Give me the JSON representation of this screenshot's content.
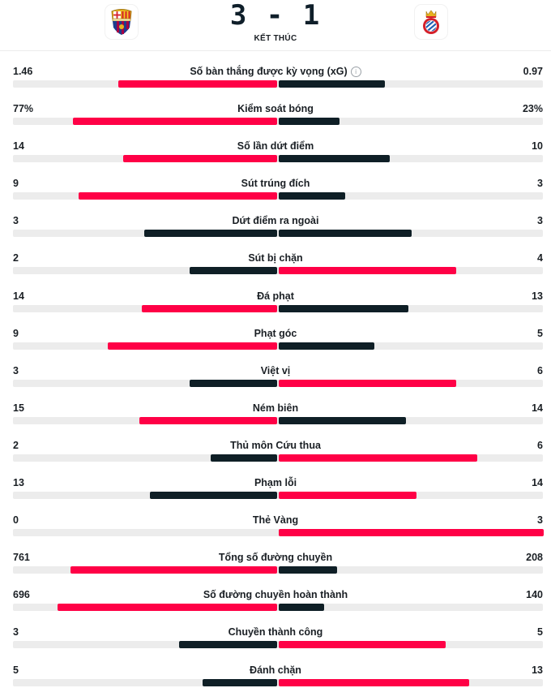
{
  "header": {
    "home_team_logo": "fc-barcelona-crest",
    "away_team_logo": "rcd-espanyol-crest",
    "score": "3 - 1",
    "status": "KẾT THÚC"
  },
  "colors": {
    "leader": "#ff0046",
    "trailer": "#0f1f26",
    "track": "#ececec"
  },
  "stats": [
    {
      "label": "Số bàn thắng được kỳ vọng (xG)",
      "home": "1.46",
      "away": "0.97",
      "home_bar": 0.6,
      "away_bar": 0.4,
      "info_icon": "info-icon",
      "info_glyph": "i"
    },
    {
      "label": "Kiểm soát bóng",
      "home": "77%",
      "away": "23%",
      "home_bar": 0.77,
      "away_bar": 0.23
    },
    {
      "label": "Số lần dứt điểm",
      "home": "14",
      "away": "10",
      "home_bar": 0.58,
      "away_bar": 0.42
    },
    {
      "label": "Sút trúng đích",
      "home": "9",
      "away": "3",
      "home_bar": 0.75,
      "away_bar": 0.25
    },
    {
      "label": "Dứt điểm ra ngoài",
      "home": "3",
      "away": "3",
      "home_bar": 0.5,
      "away_bar": 0.5
    },
    {
      "label": "Sút bị chặn",
      "home": "2",
      "away": "4",
      "home_bar": 0.33,
      "away_bar": 0.67
    },
    {
      "label": "Đá phạt",
      "home": "14",
      "away": "13",
      "home_bar": 0.51,
      "away_bar": 0.49
    },
    {
      "label": "Phạt góc",
      "home": "9",
      "away": "5",
      "home_bar": 0.64,
      "away_bar": 0.36
    },
    {
      "label": "Việt vị",
      "home": "3",
      "away": "6",
      "home_bar": 0.33,
      "away_bar": 0.67
    },
    {
      "label": "Ném biên",
      "home": "15",
      "away": "14",
      "home_bar": 0.52,
      "away_bar": 0.48
    },
    {
      "label": "Thủ môn Cứu thua",
      "home": "2",
      "away": "6",
      "home_bar": 0.25,
      "away_bar": 0.75
    },
    {
      "label": "Phạm lỗi",
      "home": "13",
      "away": "14",
      "home_bar": 0.48,
      "away_bar": 0.52
    },
    {
      "label": "Thẻ Vàng",
      "home": "0",
      "away": "3",
      "home_bar": 0.0,
      "away_bar": 1.0
    },
    {
      "label": "Tổng số đường chuyền",
      "home": "761",
      "away": "208",
      "home_bar": 0.78,
      "away_bar": 0.22
    },
    {
      "label": "Số đường chuyền hoàn thành",
      "home": "696",
      "away": "140",
      "home_bar": 0.83,
      "away_bar": 0.17
    },
    {
      "label": "Chuyền thành công",
      "home": "3",
      "away": "5",
      "home_bar": 0.37,
      "away_bar": 0.63
    },
    {
      "label": "Đánh chặn",
      "home": "5",
      "away": "13",
      "home_bar": 0.28,
      "away_bar": 0.72
    }
  ]
}
